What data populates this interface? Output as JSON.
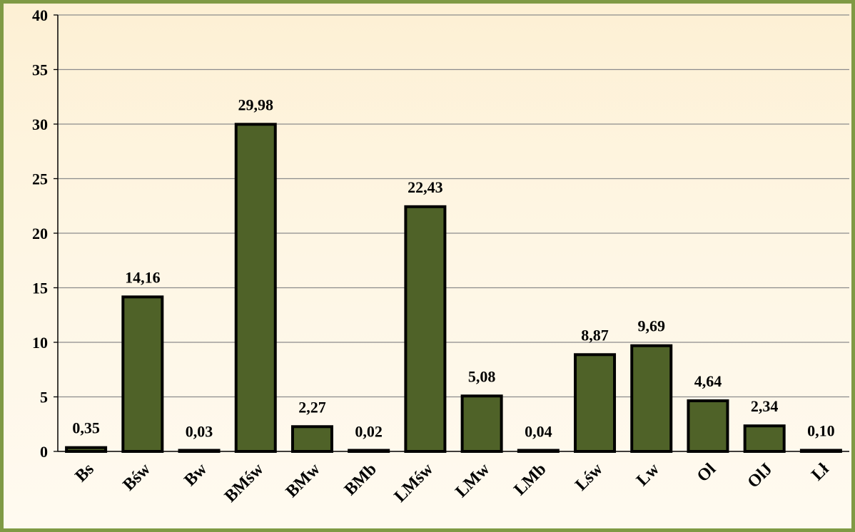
{
  "chart_data": {
    "type": "bar",
    "categories": [
      "Bs",
      "Bśw",
      "Bw",
      "BMśw",
      "BMw",
      "BMb",
      "LMśw",
      "LMw",
      "LMb",
      "Lśw",
      "Lw",
      "Ol",
      "OlJ",
      "Lł"
    ],
    "values": [
      0.35,
      14.16,
      0.03,
      29.98,
      2.27,
      0.02,
      22.43,
      5.08,
      0.04,
      8.87,
      9.69,
      4.64,
      2.34,
      0.1
    ],
    "data_labels": [
      "0,35",
      "14,16",
      "0,03",
      "29,98",
      "2,27",
      "0,02",
      "22,43",
      "5,08",
      "0,04",
      "8,87",
      "9,69",
      "4,64",
      "2,34",
      "0,10"
    ],
    "ylim": [
      0,
      40
    ],
    "yticks": [
      0,
      5,
      10,
      15,
      20,
      25,
      30,
      35,
      40
    ],
    "title": "",
    "xlabel": "",
    "ylabel": "",
    "grid": true,
    "legend": "none",
    "colors": {
      "bar_fill": "#4f6228",
      "bar_stroke": "#000000",
      "gridline": "#8c8c8c",
      "frame_border": "#7f9a45",
      "background_top": "#fdf0d4",
      "background_bottom": "#fffaf0"
    }
  }
}
